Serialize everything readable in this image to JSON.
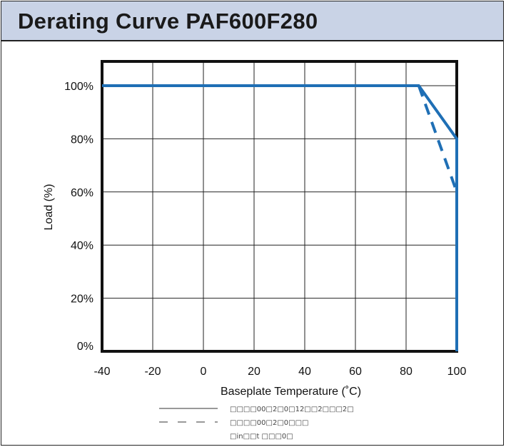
{
  "chart_data": {
    "type": "line",
    "title": "Derating Curve PAF600F280",
    "xlabel": "Baseplate Temperature (˚C)",
    "ylabel": "Load (%)",
    "xlim": [
      -40,
      100
    ],
    "ylim": [
      0,
      100
    ],
    "x_ticks": [
      -40,
      -20,
      0,
      20,
      40,
      60,
      80,
      100
    ],
    "y_ticks": [
      "0%",
      "20%",
      "40%",
      "60%",
      "80%",
      "100%"
    ],
    "grid": true,
    "series": [
      {
        "name": "□□□□00□2□0□12□□2□□□2□",
        "style": "solid",
        "color": "#1f6fb5",
        "x": [
          -40,
          85,
          100,
          100
        ],
        "y": [
          100,
          100,
          80,
          0
        ]
      },
      {
        "name": "□□□□00□2□0□□□",
        "style": "dashed",
        "color": "#1f6fb5",
        "x": [
          85,
          100
        ],
        "y": [
          100,
          60
        ]
      }
    ],
    "legend_note": "□in□□t □□□0□",
    "legend_position": "bottom"
  }
}
